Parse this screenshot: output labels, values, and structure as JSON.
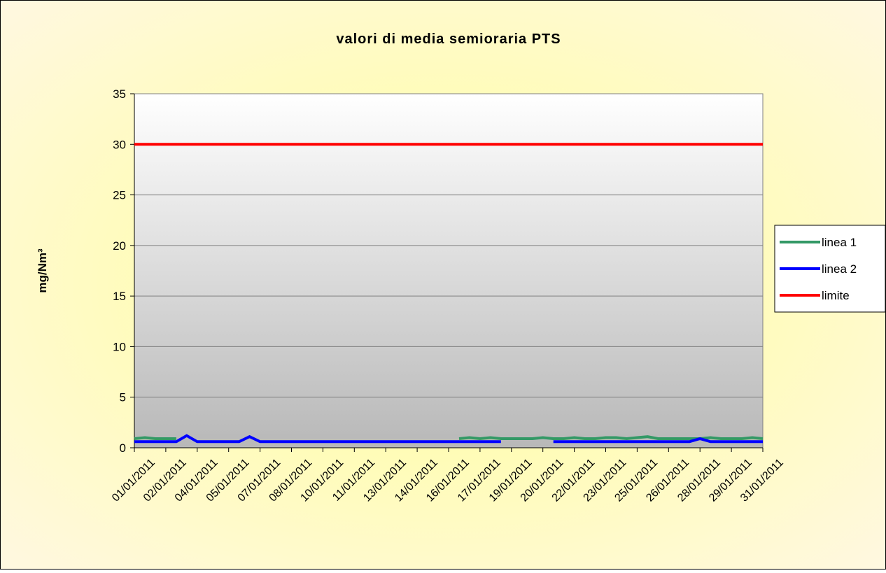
{
  "chart_data": {
    "type": "line",
    "title": "valori di media semioraria PTS",
    "ylabel": "mg/Nm³",
    "categories": [
      "01/01/2011",
      null,
      null,
      "02/01/2011",
      null,
      null,
      "04/01/2011",
      null,
      null,
      "05/01/2011",
      null,
      null,
      "07/01/2011",
      null,
      null,
      "08/01/2011",
      null,
      null,
      "10/01/2011",
      null,
      null,
      "11/01/2011",
      null,
      null,
      "13/01/2011",
      null,
      null,
      "14/01/2011",
      null,
      null,
      "16/01/2011",
      null,
      null,
      "17/01/2011",
      null,
      null,
      "19/01/2011",
      null,
      null,
      "20/01/2011",
      null,
      null,
      "22/01/2011",
      null,
      null,
      "23/01/2011",
      null,
      null,
      "25/01/2011",
      null,
      null,
      "26/01/2011",
      null,
      null,
      "28/01/2011",
      null,
      null,
      "29/01/2011",
      null,
      null,
      "31/01/2011"
    ],
    "series": [
      {
        "name": "linea 1",
        "color": "#339966",
        "values": [
          0.9,
          1,
          0.9,
          0.9,
          0.9,
          null,
          null,
          null,
          null,
          null,
          null,
          null,
          null,
          null,
          null,
          null,
          null,
          null,
          null,
          null,
          null,
          null,
          null,
          null,
          null,
          null,
          null,
          null,
          null,
          null,
          null,
          0.9,
          1,
          0.9,
          1,
          0.9,
          0.9,
          0.9,
          0.9,
          1,
          0.9,
          0.9,
          1,
          0.9,
          0.9,
          1,
          1,
          0.9,
          1,
          1.1,
          0.9,
          0.9,
          0.9,
          0.9,
          0.9,
          1,
          0.9,
          0.9,
          0.9,
          1,
          0.9
        ]
      },
      {
        "name": "linea 2",
        "color": "#0000ff",
        "values": [
          0.6,
          0.6,
          0.6,
          0.6,
          0.6,
          1.2,
          0.6,
          0.6,
          0.6,
          0.6,
          0.6,
          1.1,
          0.6,
          0.6,
          0.6,
          0.6,
          0.6,
          0.6,
          0.6,
          0.6,
          0.6,
          0.6,
          0.6,
          0.6,
          0.6,
          0.6,
          0.6,
          0.6,
          0.6,
          0.6,
          0.6,
          0.6,
          0.6,
          0.6,
          0.6,
          0.6,
          null,
          null,
          null,
          null,
          0.6,
          0.6,
          0.6,
          0.6,
          0.6,
          0.6,
          0.6,
          0.6,
          0.6,
          0.6,
          0.6,
          0.6,
          0.6,
          0.6,
          0.9,
          0.6,
          0.6,
          0.6,
          0.6,
          0.6,
          0.6
        ]
      },
      {
        "name": "limite",
        "color": "#ff0000",
        "values": [
          30,
          30,
          30,
          30,
          30,
          30,
          30,
          30,
          30,
          30,
          30,
          30,
          30,
          30,
          30,
          30,
          30,
          30,
          30,
          30,
          30,
          30,
          30,
          30,
          30,
          30,
          30,
          30,
          30,
          30,
          30,
          30,
          30,
          30,
          30,
          30,
          30,
          30,
          30,
          30,
          30,
          30,
          30,
          30,
          30,
          30,
          30,
          30,
          30,
          30,
          30,
          30,
          30,
          30,
          30,
          30,
          30,
          30,
          30,
          30,
          30
        ]
      }
    ],
    "ylim": [
      0,
      35
    ],
    "yticks": [
      0,
      5,
      10,
      15,
      20,
      25,
      30,
      35
    ],
    "grid": true,
    "legend": "right"
  }
}
